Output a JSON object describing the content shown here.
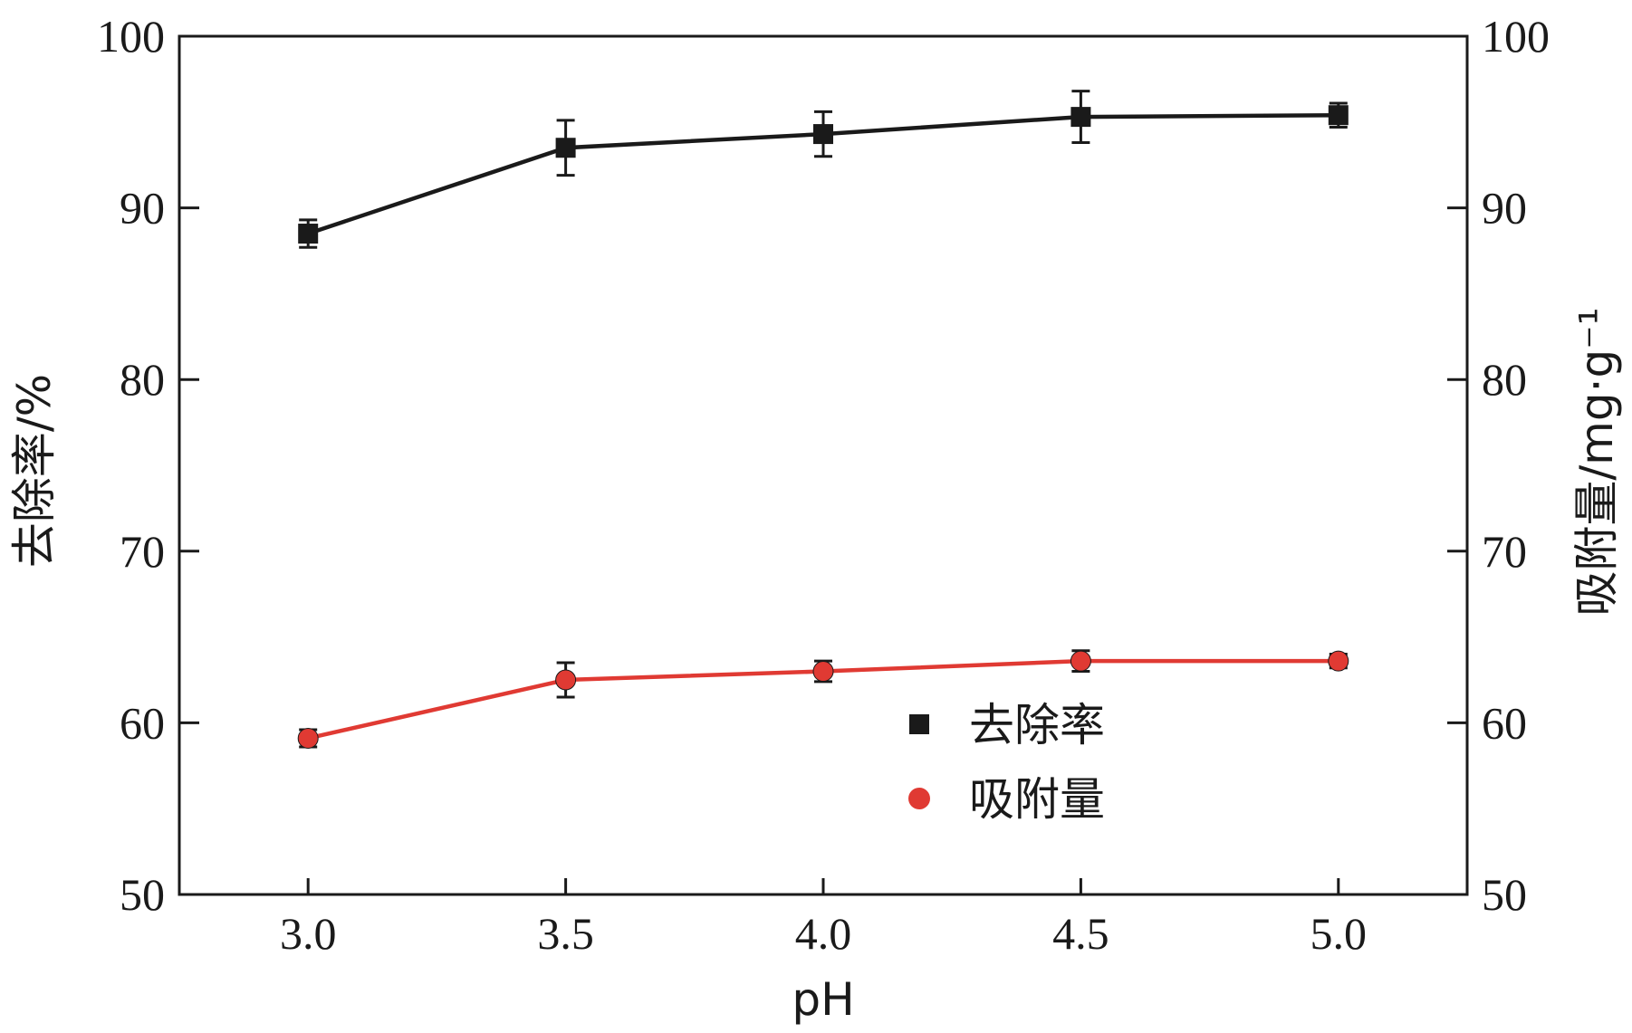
{
  "chart_data": {
    "type": "line",
    "x": [
      3.0,
      3.5,
      4.0,
      4.5,
      5.0
    ],
    "x_tick_labels": [
      "3.0",
      "3.5",
      "4.0",
      "4.5",
      "5.0"
    ],
    "xlim": [
      2.75,
      5.25
    ],
    "xlabel": "pH",
    "ylabel_left": "去除率/%",
    "ylabel_right": "吸附量/mg·g⁻¹",
    "ylim_left": [
      50,
      100
    ],
    "ylim_right": [
      50,
      100
    ],
    "y_ticks": [
      50,
      60,
      70,
      80,
      90,
      100
    ],
    "y_tick_labels": [
      "50",
      "60",
      "70",
      "80",
      "90",
      "100"
    ],
    "grid": false,
    "legend_position": "center-right, lower",
    "series": [
      {
        "name": "去除率",
        "axis": "left",
        "marker": "square",
        "color": "#1a1a1a",
        "values": [
          88.5,
          93.5,
          94.3,
          95.3,
          95.4
        ],
        "errors": [
          0.8,
          1.6,
          1.3,
          1.5,
          0.7
        ]
      },
      {
        "name": "吸附量",
        "axis": "right",
        "marker": "circle",
        "color": "#e03a33",
        "values": [
          59.1,
          62.5,
          63.0,
          63.6,
          63.6
        ],
        "errors": [
          0.5,
          1.0,
          0.6,
          0.6,
          0.4
        ]
      }
    ]
  }
}
